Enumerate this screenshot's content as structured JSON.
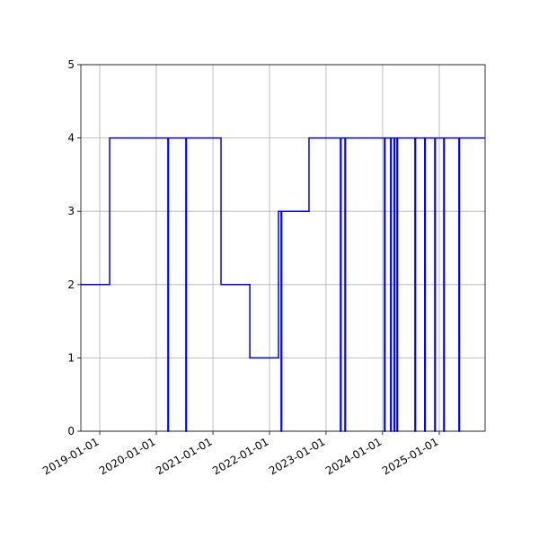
{
  "chart_data": {
    "type": "line",
    "drawstyle": "steps-post",
    "grid": true,
    "x": [
      "2018-09-01",
      "2019-03-06",
      "2020-03-16",
      "2020-03-20",
      "2020-07-10",
      "2020-07-14",
      "2021-02-22",
      "2021-08-27",
      "2022-02-28",
      "2022-03-17",
      "2022-03-21",
      "2022-09-13",
      "2023-04-04",
      "2023-04-08",
      "2023-05-03",
      "2023-05-07",
      "2024-01-13",
      "2024-01-17",
      "2024-02-22",
      "2024-02-26",
      "2024-03-16",
      "2024-03-20",
      "2024-04-03",
      "2024-04-07",
      "2024-07-28",
      "2024-08-01",
      "2024-09-29",
      "2024-10-03",
      "2024-12-03",
      "2024-12-07",
      "2025-01-30",
      "2025-02-03",
      "2025-05-08",
      "2025-05-12",
      "2025-10-24"
    ],
    "series": [
      {
        "color": "#0000ff",
        "values": [
          2,
          4,
          0,
          4,
          0,
          4,
          2,
          1,
          3,
          0,
          3,
          4,
          0,
          4,
          0,
          4,
          0,
          4,
          0,
          4,
          0,
          4,
          0,
          4,
          0,
          4,
          0,
          4,
          0,
          4,
          0,
          4,
          0,
          4,
          4
        ]
      }
    ],
    "xlim": [
      "2018-09-01",
      "2025-10-24"
    ],
    "xticks": [
      "2019-01-01",
      "2020-01-01",
      "2021-01-01",
      "2022-01-01",
      "2023-01-01",
      "2024-01-01",
      "2025-01-01"
    ],
    "ylim": [
      0,
      5
    ],
    "yticks": [
      0,
      1,
      2,
      3,
      4,
      5
    ]
  }
}
